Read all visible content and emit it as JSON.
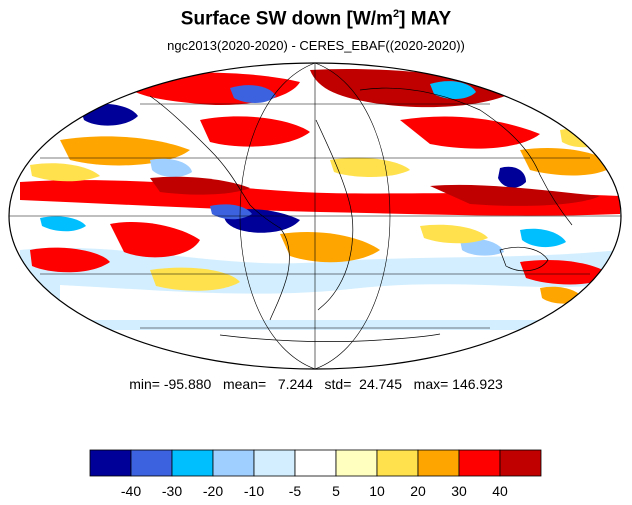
{
  "title": {
    "main": "Surface SW down [W/m",
    "sup": "2",
    "tail": "]  MAY"
  },
  "subtitle": "ngc2013(2020-2020) - CERES_EBAF((2020-2020))",
  "stats": {
    "text": "min= -95.880   mean=   7.244   std=  24.745   max= 146.923"
  },
  "colorbar": {
    "colors": [
      "#000099",
      "#3d62e0",
      "#00bfff",
      "#9fcfff",
      "#d3efff",
      "#ffffff",
      "#ffffc0",
      "#ffe14d",
      "#ffa500",
      "#ff0000",
      "#c00000"
    ],
    "tick_labels": [
      "-40",
      "-30",
      "-20",
      "-10",
      "-5",
      "5",
      "10",
      "20",
      "30",
      "40"
    ]
  },
  "map": {
    "projection": "mollweide",
    "palette_note_colors": {
      "ocean_edge": "#ffffff",
      "coast": "#000000",
      "grid": "#000000"
    }
  }
}
